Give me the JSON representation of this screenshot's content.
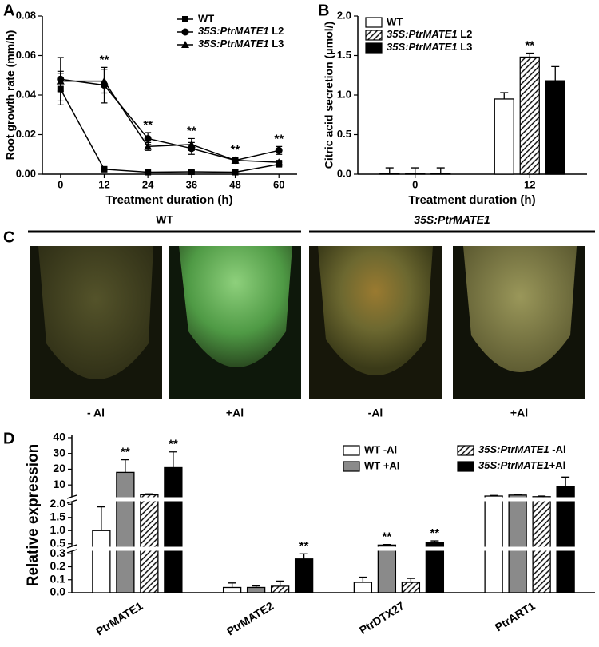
{
  "panels": [
    "A",
    "B",
    "C",
    "D"
  ],
  "chart_data": [
    {
      "type": "line",
      "x": [
        0,
        12,
        24,
        36,
        48,
        60
      ],
      "xlim": [
        -5,
        65
      ],
      "xticks": [
        0,
        12,
        24,
        36,
        48,
        60
      ],
      "ylim": [
        0,
        0.08
      ],
      "yticks": [
        {
          "value": 0,
          "label": "0.00"
        },
        0.02,
        0.04,
        0.06,
        0.08
      ],
      "xlabel": "Treatment duration (h)",
      "ylabel": "Root growth rate (mm/h)",
      "legend": "upper right",
      "annotations": [
        null,
        "**",
        "**",
        "**",
        "**",
        "**"
      ],
      "series": [
        {
          "name": "WT",
          "color": "#000000",
          "marker": "square",
          "values": [
            0.043,
            0.0025,
            0.001,
            0.0012,
            0.001,
            0.005
          ],
          "errors": [
            0.008,
            0.0006,
            0.0004,
            0.0005,
            0.0004,
            0.001
          ]
        },
        {
          "name": "35S:PtrMATE1 L2",
          "color": "#000000",
          "marker": "circle",
          "values": [
            0.048,
            0.045,
            0.018,
            0.013,
            0.007,
            0.012
          ],
          "errors": [
            0.011,
            0.009,
            0.003,
            0.003,
            0.001,
            0.002
          ]
        },
        {
          "name": "35S:PtrMATE1 L3",
          "color": "#000000",
          "marker": "triangle",
          "values": [
            0.047,
            0.047,
            0.014,
            0.015,
            0.007,
            0.006
          ],
          "errors": [
            0.005,
            0.006,
            0.002,
            0.003,
            0.0015,
            0.001
          ]
        }
      ]
    },
    {
      "type": "bar",
      "categories": [
        "0",
        "12"
      ],
      "ylim": [
        0,
        2
      ],
      "yticks": [
        {
          "value": 0,
          "label": "0.0"
        },
        0.5,
        {
          "value": 1,
          "label": "1.0"
        },
        1.5,
        {
          "value": 2,
          "label": "2.0"
        }
      ],
      "xlabel": "Treatment duration (h)",
      "ylabel": "Citric acid secretion (μmol/)",
      "legend": "upper left",
      "series": [
        {
          "name": "WT",
          "color": "#ffffff",
          "values": [
            0.01,
            0.95
          ],
          "errors": [
            0.07,
            0.08
          ],
          "annotations": [
            null,
            null
          ]
        },
        {
          "name": "35S:PtrMATE1 L2",
          "color": "#ffffff",
          "hatch": true,
          "values": [
            0.01,
            1.48
          ],
          "errors": [
            0.07,
            0.05
          ],
          "annotations": [
            null,
            "**"
          ]
        },
        {
          "name": "35S:PtrMATE1 L3",
          "color": "#000000",
          "values": [
            0.01,
            1.18
          ],
          "errors": [
            0.07,
            0.18
          ],
          "annotations": [
            null,
            null
          ]
        }
      ]
    },
    {
      "type": "bar",
      "categories": [
        "PtrMATE1",
        "PtrMATE2",
        "PtrDTX27",
        "PtrART1"
      ],
      "ylabel": "Relative expression",
      "legend": "upper right",
      "y_segments": [
        {
          "ylim": [
            0,
            0.32
          ],
          "yticks": [
            {
              "value": 0,
              "label": "0.0"
            },
            0.1,
            0.2,
            0.3
          ]
        },
        {
          "ylim": [
            0.4,
            2.1
          ],
          "yticks": [
            0.5,
            {
              "value": 1,
              "label": "1.0"
            },
            1.5,
            {
              "value": 2,
              "label": "2.0"
            }
          ]
        },
        {
          "ylim": [
            2.5,
            42
          ],
          "yticks": [
            10,
            20,
            30,
            40
          ]
        }
      ],
      "series": [
        {
          "name": "WT -Al",
          "color": "#ffffff",
          "values": [
            1.0,
            0.04,
            0.08,
            3.0
          ],
          "errors": [
            0.9,
            0.035,
            0.04,
            0.4
          ],
          "annotations": [
            null,
            null,
            null,
            null
          ]
        },
        {
          "name": "WT +Al",
          "color": "#8a8a8a",
          "values": [
            18,
            0.04,
            0.45,
            3.6
          ],
          "errors": [
            8,
            0.012,
            0.02,
            0.5
          ],
          "annotations": [
            "**",
            null,
            "**",
            null
          ]
        },
        {
          "name": "35S:PtrMATE1 -Al",
          "color": "#ffffff",
          "hatch": true,
          "values": [
            3.8,
            0.05,
            0.08,
            2.6
          ],
          "errors": [
            0.6,
            0.04,
            0.03,
            0.4
          ],
          "annotations": [
            null,
            null,
            null,
            null
          ]
        },
        {
          "name": "35S:PtrMATE1+Al",
          "color": "#000000",
          "values": [
            21,
            0.26,
            0.55,
            9
          ],
          "errors": [
            10,
            0.04,
            0.06,
            6
          ],
          "annotations": [
            "**",
            "**",
            "**",
            null
          ]
        }
      ]
    }
  ],
  "panel_c": {
    "groups": [
      "WT",
      "35S:PtrMATE1"
    ],
    "labels": [
      "- Al",
      "+Al",
      "-Al",
      "+Al"
    ]
  }
}
